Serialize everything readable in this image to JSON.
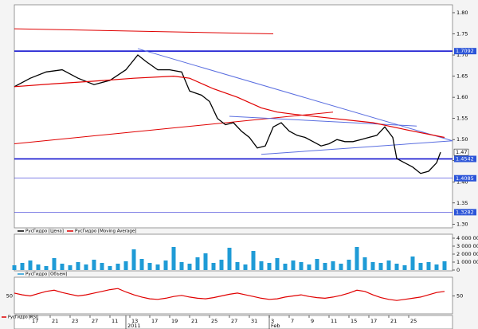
{
  "chart_data": [
    {
      "type": "line",
      "ylim": [
        1.295,
        1.815
      ],
      "yticks": [
        {
          "value": 1.3,
          "label": "1.30"
        },
        {
          "value": 1.35,
          "label": "1.35"
        },
        {
          "value": 1.4,
          "label": "1.40"
        },
        {
          "value": 1.45,
          "label": "1.45"
        },
        {
          "value": 1.5,
          "label": "1.50"
        },
        {
          "value": 1.55,
          "label": "1.55"
        },
        {
          "value": 1.6,
          "label": "1.60"
        },
        {
          "value": 1.65,
          "label": "1.65"
        },
        {
          "value": 1.7,
          "label": "1.70"
        },
        {
          "value": 1.75,
          "label": "1.75"
        },
        {
          "value": 1.8,
          "label": "1.80"
        }
      ],
      "xlim": [
        0,
        110
      ],
      "series": [
        {
          "name": "РусГидро [Цена]",
          "color": "#000000",
          "x": [
            0,
            4,
            8,
            12,
            16,
            20,
            24,
            28,
            31,
            33,
            36,
            39,
            42,
            44,
            47,
            49,
            51,
            53,
            55,
            57,
            59,
            61,
            63,
            65,
            67,
            69,
            71,
            73,
            75,
            77,
            79,
            81,
            83,
            85,
            87,
            89,
            91,
            93,
            95,
            96,
            98,
            100,
            102,
            104,
            106,
            107
          ],
          "values": [
            1.625,
            1.645,
            1.66,
            1.665,
            1.645,
            1.63,
            1.64,
            1.665,
            1.7,
            1.685,
            1.665,
            1.665,
            1.66,
            1.615,
            1.605,
            1.59,
            1.55,
            1.535,
            1.54,
            1.52,
            1.505,
            1.48,
            1.485,
            1.53,
            1.54,
            1.52,
            1.51,
            1.505,
            1.495,
            1.485,
            1.49,
            1.5,
            1.495,
            1.495,
            1.5,
            1.505,
            1.51,
            1.53,
            1.505,
            1.455,
            1.445,
            1.435,
            1.42,
            1.425,
            1.445,
            1.47
          ]
        },
        {
          "name": "РусГидро [Moving Average]",
          "color": "#e00000",
          "x": [
            0,
            10,
            20,
            30,
            40,
            44,
            50,
            56,
            62,
            66,
            70,
            80,
            90,
            100,
            108
          ],
          "values": [
            1.625,
            1.632,
            1.638,
            1.645,
            1.65,
            1.645,
            1.62,
            1.6,
            1.575,
            1.565,
            1.56,
            1.55,
            1.54,
            1.52,
            1.505
          ]
        }
      ],
      "lines": [
        {
          "x": [
            0,
            65
          ],
          "values": [
            1.762,
            1.75
          ],
          "color": "#e00000"
        },
        {
          "x": [
            0,
            80
          ],
          "values": [
            1.49,
            1.565
          ],
          "color": "#e00000"
        },
        {
          "x": [
            31,
            110
          ],
          "values": [
            1.715,
            1.497
          ],
          "color": "#5a6ee0"
        },
        {
          "x": [
            62,
            110
          ],
          "values": [
            1.465,
            1.497
          ],
          "color": "#5a6ee0"
        },
        {
          "x": [
            54,
            101
          ],
          "values": [
            1.555,
            1.532
          ],
          "color": "#5a6ee0"
        }
      ],
      "levels": [
        1.7092,
        1.4542,
        1.4085,
        1.3282
      ],
      "level_widths": [
        1.5,
        1.5,
        0.6,
        0.6
      ],
      "level_color": "#0000cc",
      "last_price": 1.47
    },
    {
      "type": "bar",
      "ylim": [
        0,
        4300000
      ],
      "yticks": [
        {
          "value": 0,
          "label": "0"
        },
        {
          "value": 1000000,
          "label": "1 000 000"
        },
        {
          "value": 2000000,
          "label": "2 000 000"
        },
        {
          "value": 3000000,
          "label": "3 000 000"
        },
        {
          "value": 4000000,
          "label": "4 000 000"
        }
      ],
      "xlim": [
        0,
        110
      ],
      "series": [
        {
          "name": "РусГидро [Объем]",
          "color": "#1f9bd6",
          "x": [
            0,
            2,
            4,
            6,
            8,
            10,
            12,
            14,
            16,
            18,
            20,
            22,
            24,
            26,
            28,
            30,
            32,
            34,
            36,
            38,
            40,
            42,
            44,
            46,
            48,
            50,
            52,
            54,
            56,
            58,
            60,
            62,
            64,
            66,
            68,
            70,
            72,
            74,
            76,
            78,
            80,
            82,
            84,
            86,
            88,
            90,
            92,
            94,
            96,
            98,
            100,
            102,
            104,
            106,
            108
          ],
          "values": [
            600000,
            900000,
            1200000,
            700000,
            500000,
            1500000,
            800000,
            600000,
            1000000,
            700000,
            1300000,
            900000,
            500000,
            800000,
            1100000,
            2600000,
            1400000,
            900000,
            700000,
            1200000,
            2900000,
            1000000,
            800000,
            1600000,
            2100000,
            900000,
            1300000,
            2800000,
            1000000,
            700000,
            2400000,
            1100000,
            900000,
            1500000,
            800000,
            1200000,
            1000000,
            700000,
            1400000,
            900000,
            1100000,
            800000,
            1300000,
            2900000,
            1600000,
            1000000,
            900000,
            1200000,
            800000,
            600000,
            1700000,
            900000,
            1000000,
            700000,
            1100000
          ]
        }
      ]
    },
    {
      "type": "line",
      "ylim": [
        20,
        80
      ],
      "yticks": [
        50
      ],
      "xlim": [
        0,
        110
      ],
      "series": [
        {
          "name": "РусГидро [RSI]",
          "color": "#e00000",
          "x": [
            0,
            2,
            4,
            6,
            8,
            10,
            12,
            14,
            16,
            18,
            20,
            22,
            24,
            26,
            28,
            30,
            32,
            34,
            36,
            38,
            40,
            42,
            44,
            46,
            48,
            50,
            52,
            54,
            56,
            58,
            60,
            62,
            64,
            66,
            68,
            70,
            72,
            74,
            76,
            78,
            80,
            82,
            84,
            86,
            88,
            90,
            92,
            94,
            96,
            98,
            100,
            102,
            104,
            106,
            108
          ],
          "values": [
            55,
            52,
            50,
            54,
            58,
            60,
            56,
            53,
            50,
            52,
            55,
            58,
            61,
            63,
            57,
            52,
            48,
            45,
            44,
            46,
            49,
            51,
            48,
            46,
            45,
            47,
            50,
            53,
            55,
            52,
            49,
            46,
            44,
            45,
            48,
            50,
            52,
            49,
            47,
            46,
            48,
            51,
            55,
            60,
            58,
            52,
            47,
            44,
            42,
            44,
            46,
            48,
            52,
            56,
            58
          ]
        }
      ],
      "xticks": [
        {
          "value": 4,
          "label": "17"
        },
        {
          "value": 9,
          "label": "21"
        },
        {
          "value": 14,
          "label": "23"
        },
        {
          "value": 19,
          "label": "27"
        },
        {
          "value": 24,
          "label": "11"
        },
        {
          "value": 29,
          "label": "13"
        },
        {
          "value": 34,
          "label": "17"
        },
        {
          "value": 39,
          "label": "19"
        },
        {
          "value": 44,
          "label": "21"
        },
        {
          "value": 49,
          "label": "25"
        },
        {
          "value": 54,
          "label": "27"
        },
        {
          "value": 59,
          "label": "31"
        },
        {
          "value": 64,
          "label": "3"
        },
        {
          "value": 69,
          "label": "7"
        },
        {
          "value": 74,
          "label": "9"
        },
        {
          "value": 79,
          "label": "11"
        },
        {
          "value": 84,
          "label": "15"
        },
        {
          "value": 89,
          "label": "17"
        },
        {
          "value": 94,
          "label": "21"
        },
        {
          "value": 99,
          "label": "25"
        }
      ],
      "xticks_major": [
        {
          "value": 28,
          "label": "2011"
        },
        {
          "value": 64,
          "label": "Feb"
        }
      ]
    }
  ]
}
